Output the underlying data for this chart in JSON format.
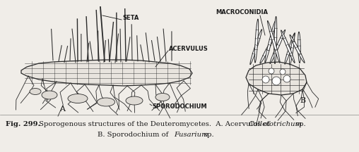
{
  "background_color": "#f0ede8",
  "caption_bold": "Fig. 299.",
  "caption_rest1": " Sporogenous structures of the Deuteromycetes.  A. Acervulus of ",
  "caption_italic1": "Colletotrichum",
  "caption_end1": " sp.",
  "caption_line2a": "B. Sporodochium of ",
  "caption_italic2": "Fusarium",
  "caption_end2": " sp.",
  "label_seta": "SETA",
  "label_macroconidia": "MACROCONIDIA",
  "label_acervulus": "ACERVULUS",
  "label_sporodochium": "SPORODOCHIUM",
  "label_a": "A",
  "label_b": "B",
  "text_color": "#1a1a1a",
  "line_color": "#2a2a2a",
  "fig_width": 5.08,
  "fig_height": 2.16,
  "dpi": 100
}
